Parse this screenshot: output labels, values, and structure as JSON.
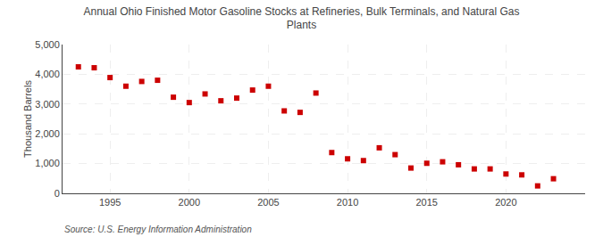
{
  "chart_data": {
    "type": "scatter",
    "title": "Annual Ohio Finished Motor Gasoline Stocks at Refineries, Bulk Terminals, and Natural Gas\nPlants",
    "ylabel": "Thousand Barrels",
    "annotation": "Source: U.S. Energy Information Administration",
    "x": [
      1993,
      1994,
      1995,
      1996,
      1997,
      1998,
      1999,
      2000,
      2001,
      2002,
      2003,
      2004,
      2005,
      2006,
      2007,
      2008,
      2009,
      2010,
      2011,
      2012,
      2013,
      2014,
      2015,
      2016,
      2017,
      2018,
      2019,
      2020,
      2021,
      2022,
      2023
    ],
    "values": [
      4250,
      4220,
      3890,
      3600,
      3760,
      3800,
      3230,
      3050,
      3340,
      3110,
      3200,
      3470,
      3600,
      2770,
      2720,
      3370,
      1370,
      1160,
      1100,
      1530,
      1300,
      850,
      1010,
      1060,
      960,
      820,
      820,
      650,
      620,
      250,
      490
    ],
    "color": "#cc0000",
    "marker": "square",
    "xlim": [
      1992,
      2025
    ],
    "ylim": [
      0,
      5000
    ],
    "xticks": [
      1995,
      2000,
      2005,
      2010,
      2015,
      2020
    ],
    "yticks": [
      0,
      {
        "value": 1000,
        "label": "1,000"
      },
      {
        "value": 2000,
        "label": "2,000"
      },
      {
        "value": 3000,
        "label": "3,000"
      },
      {
        "value": 4000,
        "label": "4,000"
      },
      {
        "value": 5000,
        "label": "5,000"
      }
    ],
    "grid": true
  }
}
